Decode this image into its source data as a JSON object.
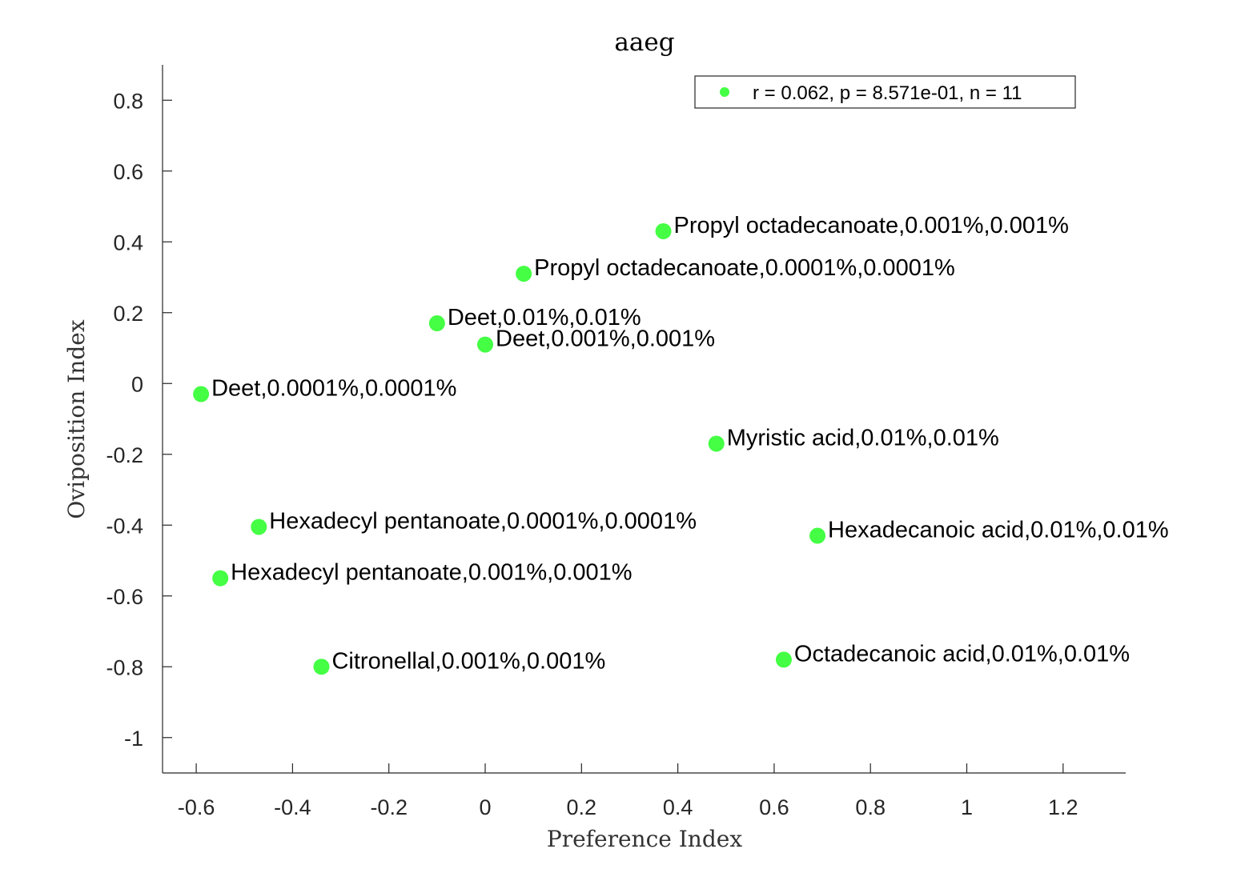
{
  "chart_data": {
    "type": "scatter",
    "title": "aaeg",
    "xlabel": "Preference Index",
    "ylabel": "Oviposition Index",
    "xlim": [
      -0.67,
      1.33
    ],
    "ylim": [
      -1.1,
      0.9
    ],
    "x_ticks": [
      -0.6,
      -0.4,
      -0.2,
      0,
      0.2,
      0.4,
      0.6,
      0.8,
      1,
      1.2
    ],
    "x_tick_labels": [
      "-0.6",
      "-0.4",
      "-0.2",
      "0",
      "0.2",
      "0.4",
      "0.6",
      "0.8",
      "1",
      "1.2"
    ],
    "y_ticks": [
      0.8,
      0.6,
      0.4,
      0.2,
      0,
      -0.2,
      -0.4,
      -0.6,
      -0.8,
      -1
    ],
    "y_tick_labels": [
      "0.8",
      "0.6",
      "0.4",
      "0.2",
      "0",
      "-0.2",
      "-0.4",
      "-0.6",
      "-0.8",
      "-1"
    ],
    "grid": false,
    "legend_position": "top-right",
    "series": [
      {
        "name": "r = 0.062, p = 8.571e-01, n = 11",
        "color": "#44ff44",
        "points": [
          {
            "x": 0.37,
            "y": 0.43,
            "label": "Propyl octadecanoate,0.001%,0.001%"
          },
          {
            "x": 0.08,
            "y": 0.31,
            "label": "Propyl octadecanoate,0.0001%,0.0001%"
          },
          {
            "x": -0.1,
            "y": 0.17,
            "label": "Deet,0.01%,0.01%"
          },
          {
            "x": 0.0,
            "y": 0.11,
            "label": "Deet,0.001%,0.001%"
          },
          {
            "x": -0.59,
            "y": -0.03,
            "label": "Deet,0.0001%,0.0001%"
          },
          {
            "x": 0.48,
            "y": -0.17,
            "label": "Myristic acid,0.01%,0.01%"
          },
          {
            "x": -0.47,
            "y": -0.405,
            "label": "Hexadecyl pentanoate,0.0001%,0.0001%"
          },
          {
            "x": 0.69,
            "y": -0.43,
            "label": "Hexadecanoic acid,0.01%,0.01%"
          },
          {
            "x": -0.55,
            "y": -0.55,
            "label": "Hexadecyl pentanoate,0.001%,0.001%"
          },
          {
            "x": -0.34,
            "y": -0.8,
            "label": "Citronellal,0.001%,0.001%"
          },
          {
            "x": 0.62,
            "y": -0.78,
            "label": "Octadecanoic acid,0.01%,0.01%"
          }
        ]
      }
    ]
  }
}
